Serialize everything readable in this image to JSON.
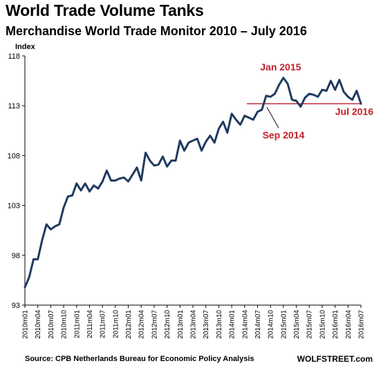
{
  "header": {
    "title": "World Trade Volume Tanks",
    "subtitle": "Merchandise World Trade Monitor 2010 – July 2016"
  },
  "footer": {
    "source": "Source: CPB Netherlands Bureau for Economic Policy Analysis",
    "brand": "WOLFSTREET.com"
  },
  "colors": {
    "line": "#1f3a5f",
    "annotation": "#c0202a",
    "axis": "#000000"
  },
  "chart_data": {
    "type": "line",
    "ylabel": "Index",
    "ylim": [
      93,
      118
    ],
    "yticks": [
      93,
      98,
      103,
      108,
      113,
      118
    ],
    "xticks": [
      "2010m01",
      "2010m04",
      "2010m07",
      "2010m10",
      "2011m01",
      "2011m04",
      "2011m07",
      "2011m10",
      "2012m01",
      "2012m04",
      "2012m07",
      "2012m10",
      "2013m01",
      "2013m04",
      "2013m07",
      "2013m10",
      "2014m01",
      "2014m04",
      "2014m07",
      "2014m10",
      "2015m01",
      "2015m04",
      "2015m07",
      "2015m10",
      "2016m01",
      "2016m04",
      "2016m07"
    ],
    "grid": false,
    "series": [
      {
        "values": [
          94.8,
          95.8,
          97.6,
          97.6,
          99.5,
          101.1,
          100.6,
          100.9,
          101.1,
          102.8,
          103.9,
          104.0,
          105.2,
          104.5,
          105.2,
          104.4,
          105.0,
          104.7,
          105.4,
          106.5,
          105.5,
          105.5,
          105.7,
          105.8,
          105.4,
          106.1,
          106.8,
          105.5,
          108.3,
          107.5,
          107.0,
          107.1,
          107.9,
          106.9,
          107.5,
          107.5,
          109.5,
          108.5,
          109.3,
          109.5,
          109.7,
          108.5,
          109.4,
          110.0,
          109.3,
          110.7,
          111.4,
          110.3,
          112.2,
          111.6,
          111.1,
          112.0,
          111.8,
          111.6,
          112.4,
          112.6,
          114.0,
          113.9,
          114.2,
          115.1,
          115.8,
          115.2,
          113.6,
          113.5,
          112.9,
          113.8,
          114.2,
          114.1,
          113.9,
          114.6,
          114.5,
          115.5,
          114.6,
          115.6,
          114.4,
          113.9,
          113.6,
          114.5,
          113.2
        ]
      }
    ],
    "reference_line": {
      "y": 113.2,
      "from": "2014m09",
      "to": "2016m07"
    },
    "annotations": [
      {
        "text": "Jan 2015",
        "x": "2015m01"
      },
      {
        "text": "Sep 2014",
        "x": "2014m09"
      },
      {
        "text": "Jul 2016",
        "x": "2016m07"
      }
    ]
  }
}
